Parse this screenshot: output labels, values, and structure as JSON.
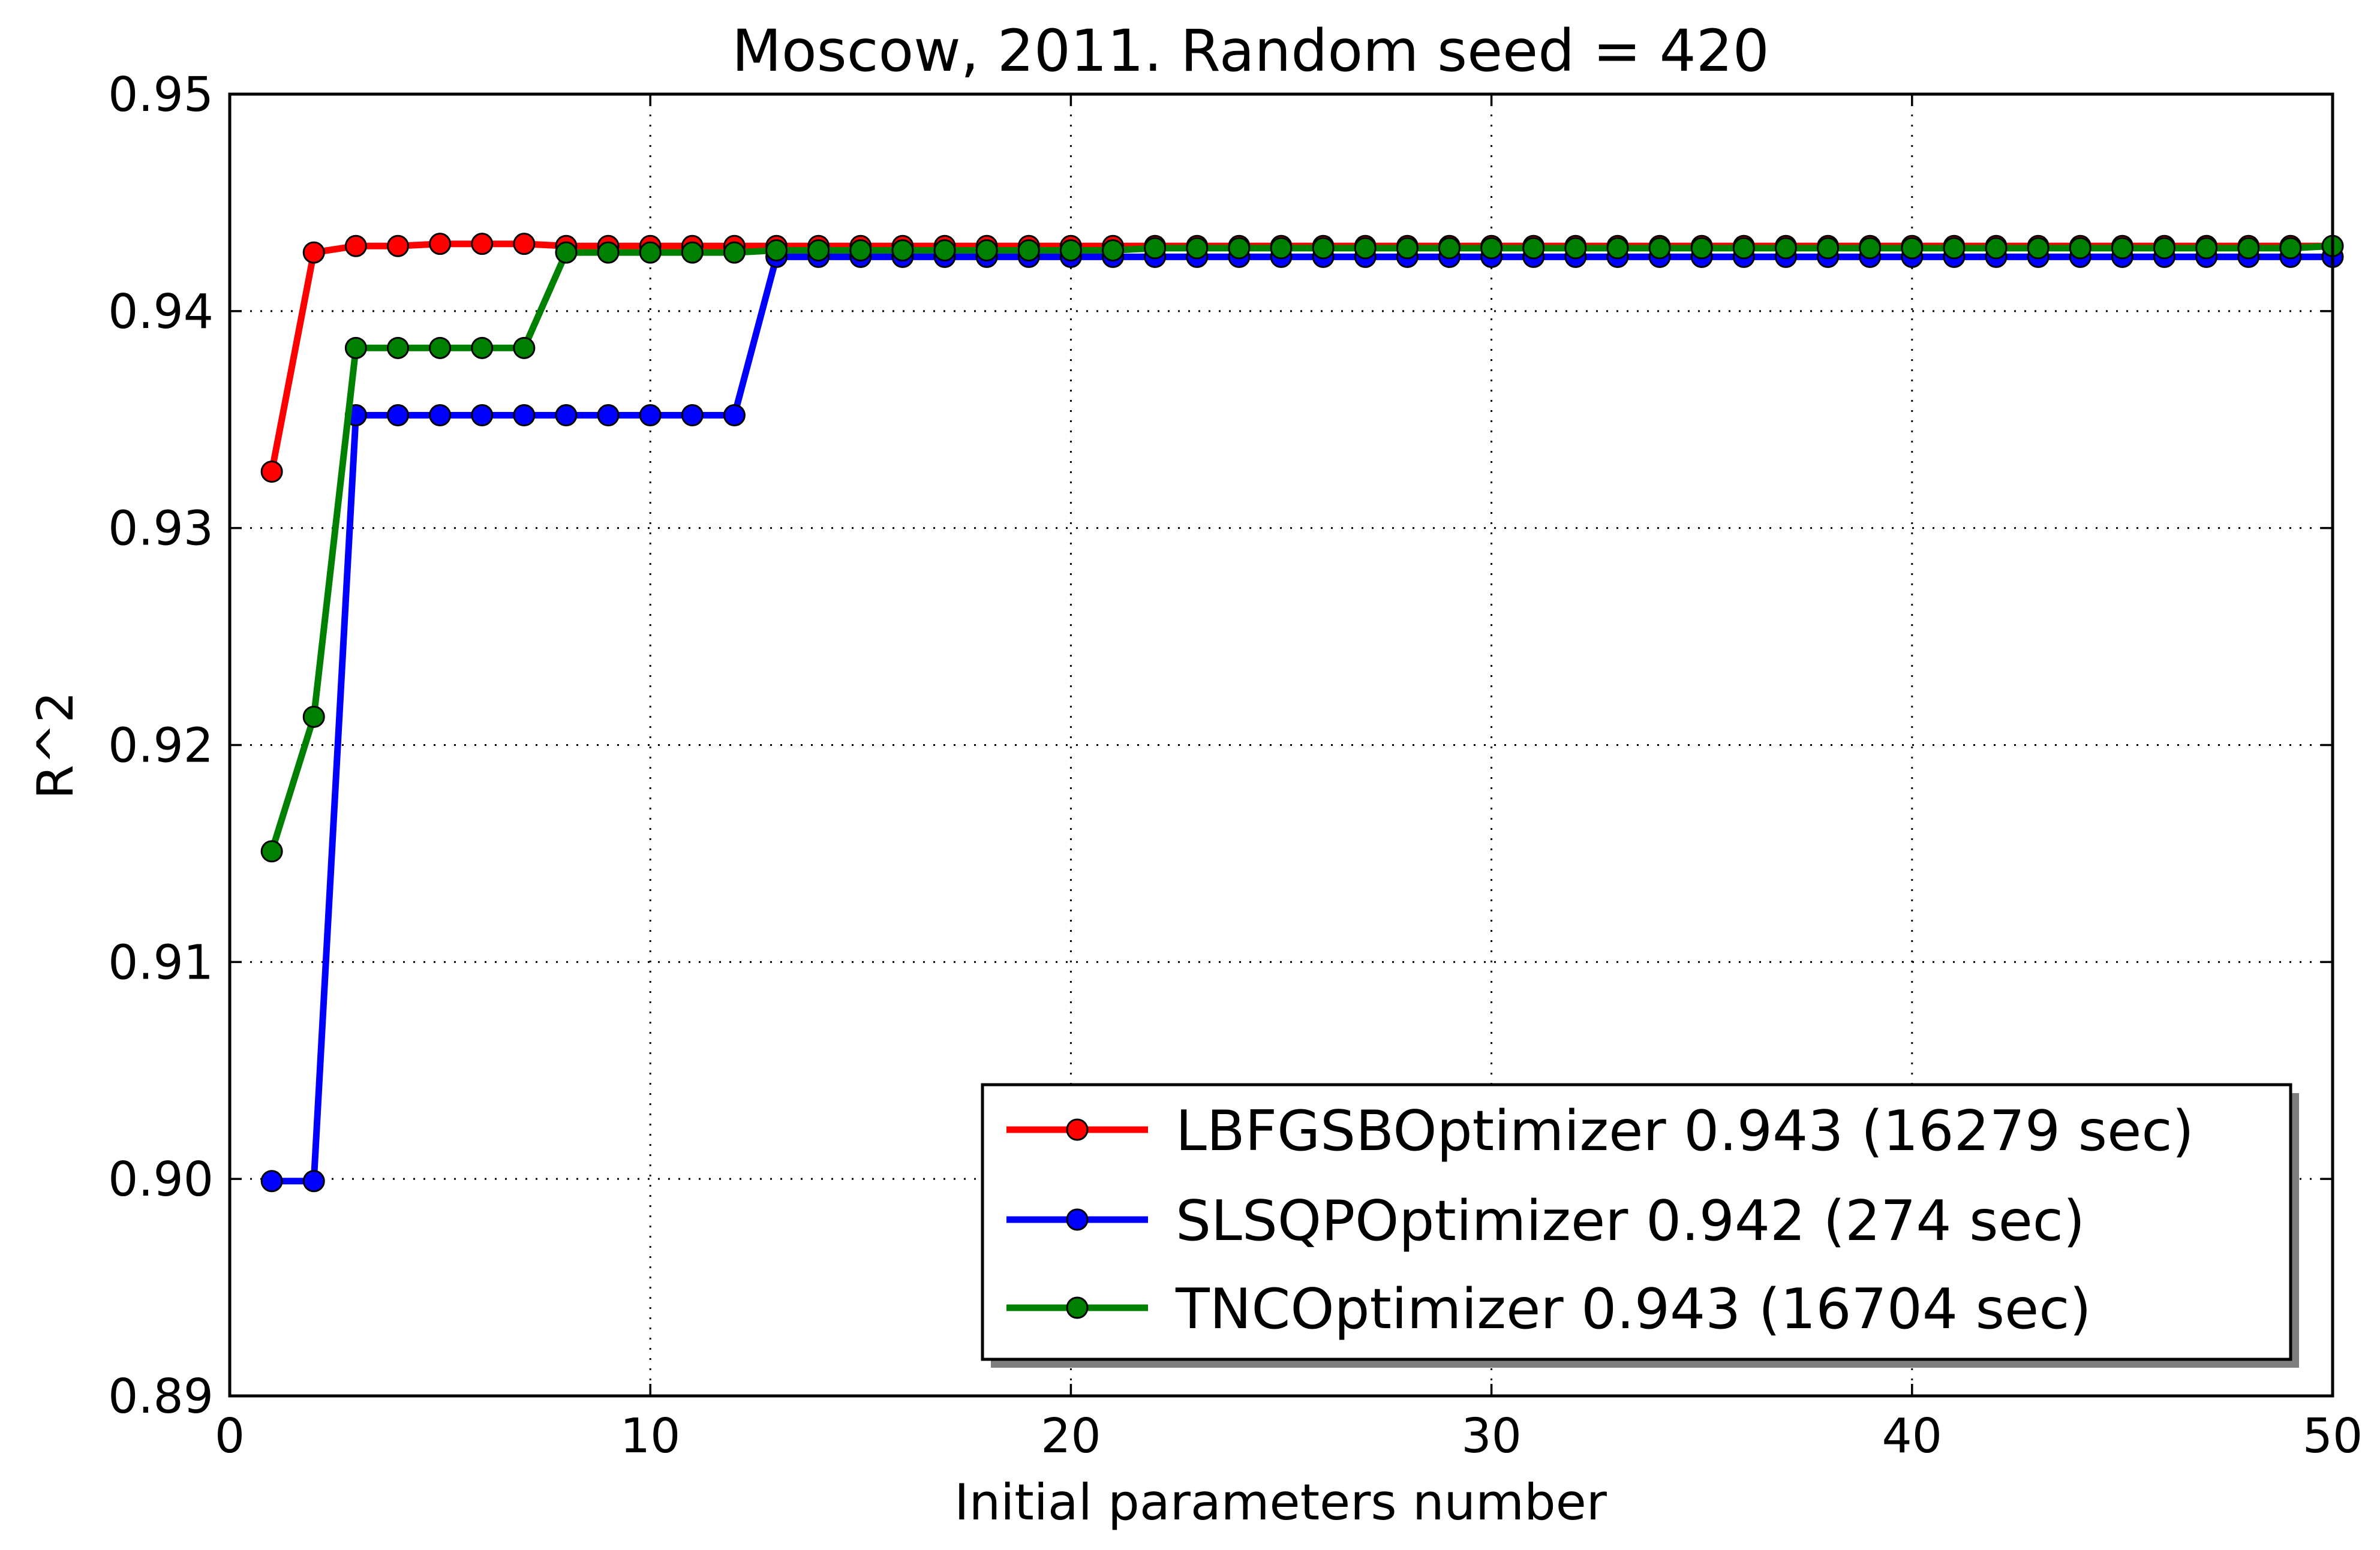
{
  "chart_data": {
    "type": "line",
    "title": "Moscow, 2011. Random seed = 420",
    "xlabel": "Initial parameters number",
    "ylabel": "R^2",
    "xlim": [
      0,
      50
    ],
    "ylim": [
      0.89,
      0.95
    ],
    "x_ticks": [
      0,
      10,
      20,
      30,
      40,
      50
    ],
    "x_tick_labels": [
      "0",
      "10",
      "20",
      "30",
      "40",
      "50"
    ],
    "y_ticks": [
      0.89,
      0.9,
      0.91,
      0.92,
      0.93,
      0.94,
      0.95
    ],
    "y_tick_labels": [
      "0.89",
      "0.90",
      "0.91",
      "0.92",
      "0.93",
      "0.94",
      "0.95"
    ],
    "grid": true,
    "legend_position": "lower-right",
    "x": [
      1,
      2,
      3,
      4,
      5,
      6,
      7,
      8,
      9,
      10,
      11,
      12,
      13,
      14,
      15,
      16,
      17,
      18,
      19,
      20,
      21,
      22,
      23,
      24,
      25,
      26,
      27,
      28,
      29,
      30,
      31,
      32,
      33,
      34,
      35,
      36,
      37,
      38,
      39,
      40,
      41,
      42,
      43,
      44,
      45,
      46,
      47,
      48,
      49,
      50
    ],
    "series": [
      {
        "name": "LBFGSBOptimizer 0.943 (16279 sec)",
        "color": "#ff0000",
        "values": [
          0.9326,
          0.9427,
          0.943,
          0.943,
          0.9431,
          0.9431,
          0.9431,
          0.943,
          0.943,
          0.943,
          0.943,
          0.943,
          0.943,
          0.943,
          0.943,
          0.943,
          0.943,
          0.943,
          0.943,
          0.943,
          0.943,
          0.943,
          0.943,
          0.943,
          0.943,
          0.943,
          0.943,
          0.943,
          0.943,
          0.943,
          0.943,
          0.943,
          0.943,
          0.943,
          0.943,
          0.943,
          0.943,
          0.943,
          0.943,
          0.943,
          0.943,
          0.943,
          0.943,
          0.943,
          0.943,
          0.943,
          0.943,
          0.943,
          0.943,
          0.943
        ]
      },
      {
        "name": "SLSQPOptimizer 0.942 (274 sec)",
        "color": "#0000ff",
        "values": [
          0.8999,
          0.8999,
          0.9352,
          0.9352,
          0.9352,
          0.9352,
          0.9352,
          0.9352,
          0.9352,
          0.9352,
          0.9352,
          0.9352,
          0.9425,
          0.9425,
          0.9425,
          0.9425,
          0.9425,
          0.9425,
          0.9425,
          0.9425,
          0.9425,
          0.9425,
          0.9425,
          0.9425,
          0.9425,
          0.9425,
          0.9425,
          0.9425,
          0.9425,
          0.9425,
          0.9425,
          0.9425,
          0.9425,
          0.9425,
          0.9425,
          0.9425,
          0.9425,
          0.9425,
          0.9425,
          0.9425,
          0.9425,
          0.9425,
          0.9425,
          0.9425,
          0.9425,
          0.9425,
          0.9425,
          0.9425,
          0.9425,
          0.9425
        ]
      },
      {
        "name": "TNCOptimizer 0.943 (16704 sec)",
        "color": "#008000",
        "values": [
          0.9151,
          0.9213,
          0.9383,
          0.9383,
          0.9383,
          0.9383,
          0.9383,
          0.9427,
          0.9427,
          0.9427,
          0.9427,
          0.9427,
          0.9428,
          0.9428,
          0.9428,
          0.9428,
          0.9428,
          0.9428,
          0.9428,
          0.9428,
          0.9428,
          0.9429,
          0.9429,
          0.9429,
          0.9429,
          0.9429,
          0.9429,
          0.9429,
          0.9429,
          0.9429,
          0.9429,
          0.9429,
          0.9429,
          0.9429,
          0.9429,
          0.9429,
          0.9429,
          0.9429,
          0.9429,
          0.9429,
          0.9429,
          0.9429,
          0.9429,
          0.9429,
          0.9429,
          0.9429,
          0.9429,
          0.9429,
          0.9429,
          0.943
        ]
      }
    ]
  }
}
